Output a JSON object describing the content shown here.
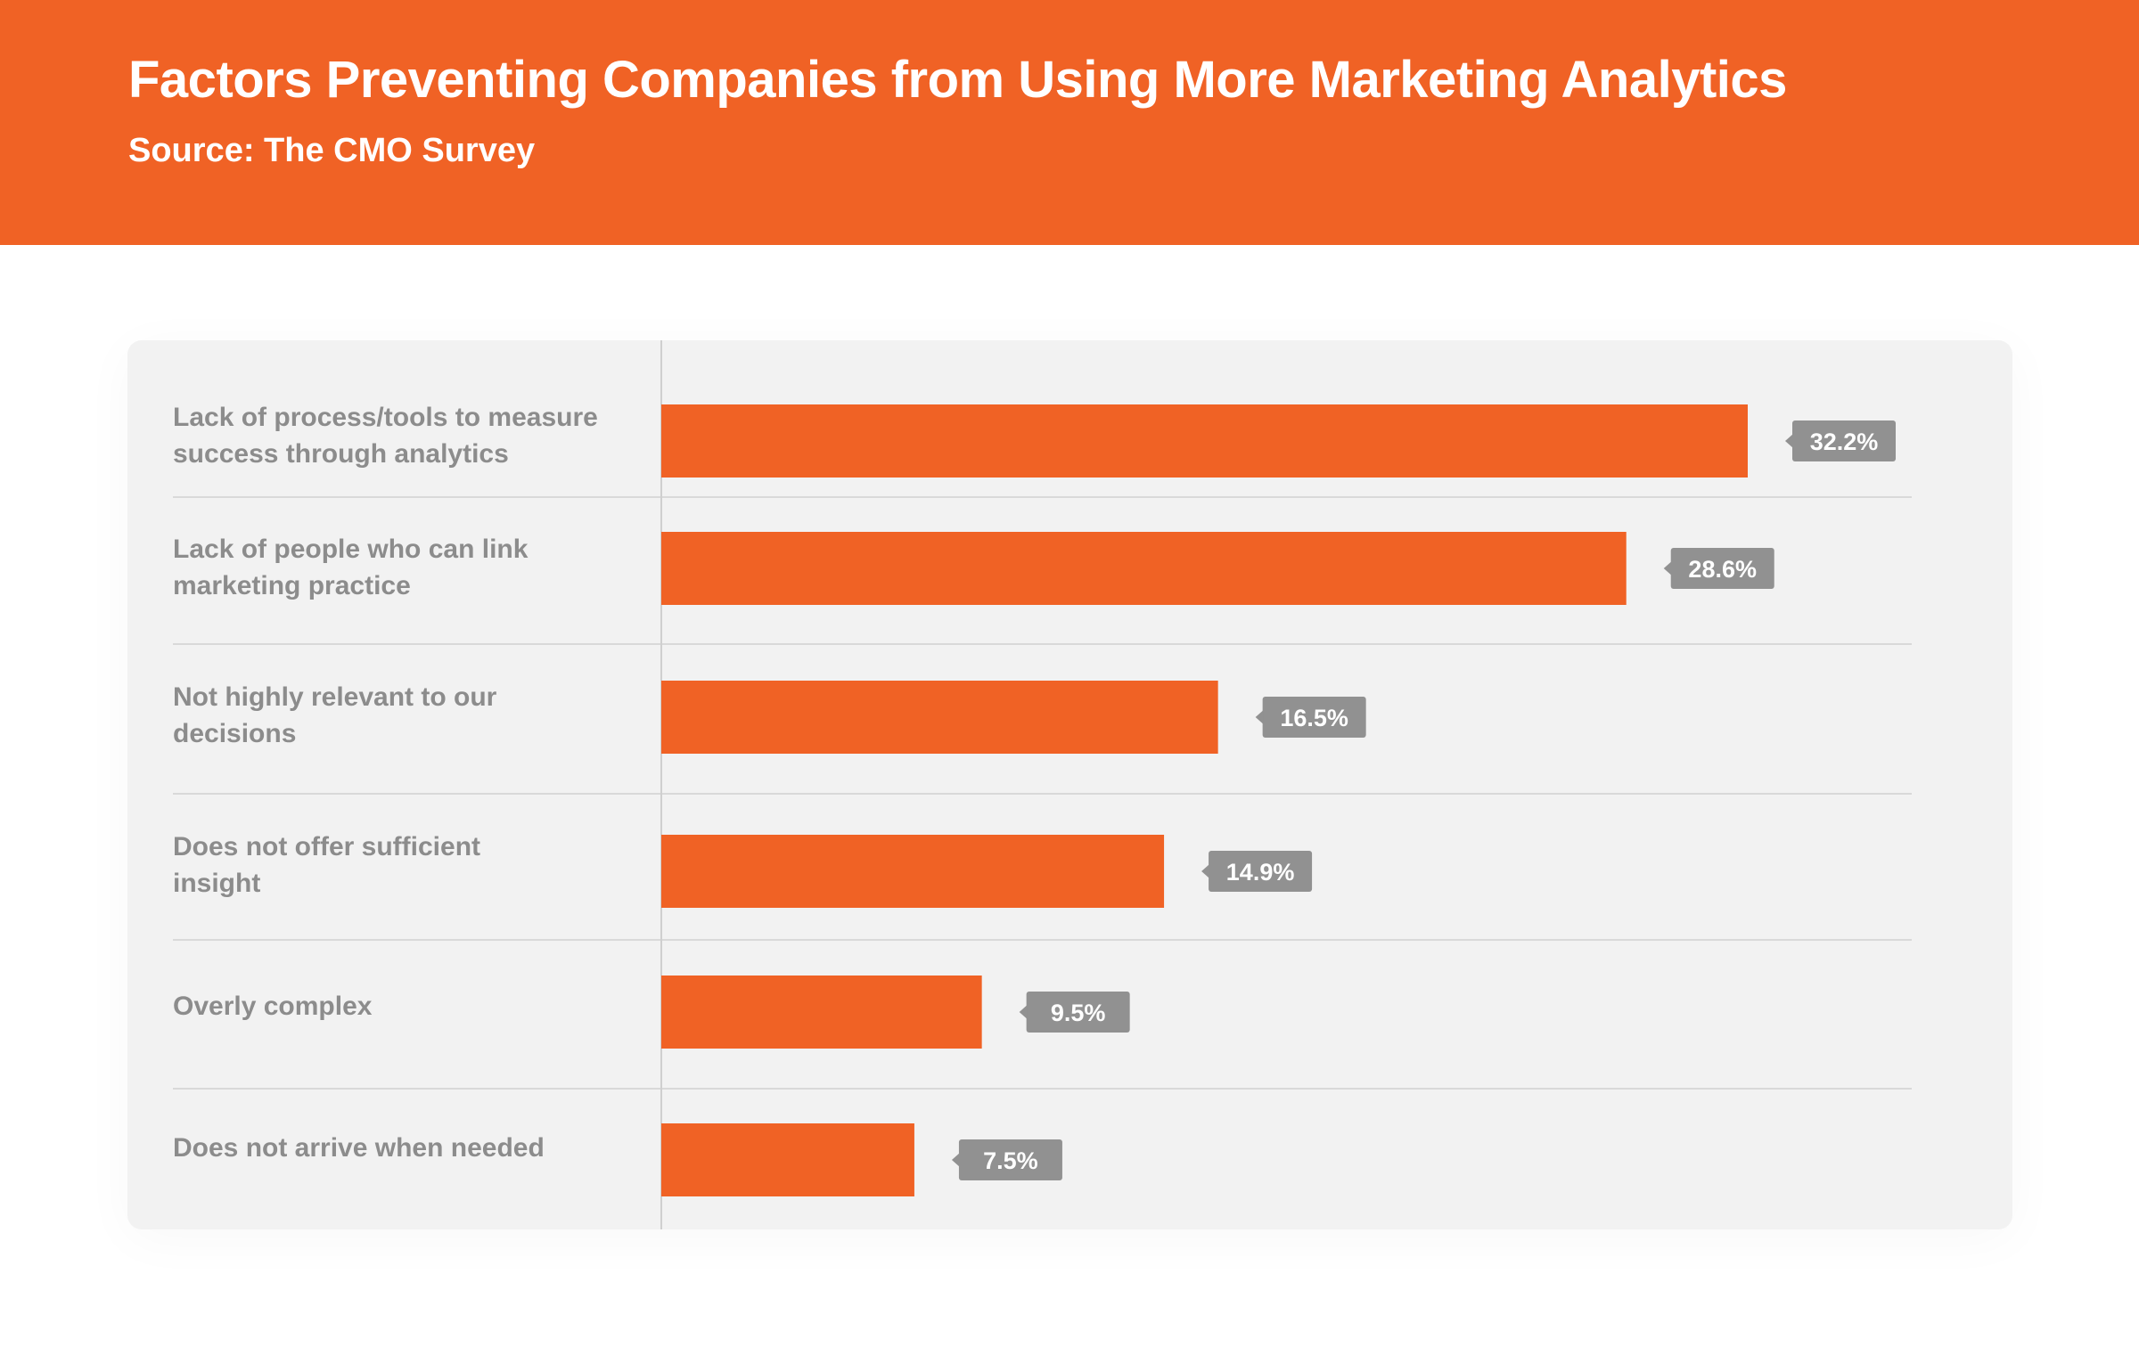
{
  "header": {
    "title": "Factors Preventing Companies from Using More Marketing Analytics",
    "subtitle": "Source: The CMO Survey"
  },
  "colors": {
    "brand": "#f06225",
    "bar": "#f06225",
    "label_bg": "#919191",
    "panel_bg": "#f2f2f2",
    "text_muted": "#8c8c8c"
  },
  "chart_data": {
    "type": "bar",
    "orientation": "horizontal",
    "title": "Factors Preventing Companies from Using More Marketing Analytics",
    "subtitle": "Source: The CMO Survey",
    "categories": [
      "Lack of process/tools to measure success through analytics",
      "Lack of people who can link marketing practice",
      "Not highly relevant to our decisions",
      "Does not offer sufficient insight",
      "Overly complex",
      "Does not arrive when needed"
    ],
    "values": [
      32.2,
      28.6,
      16.5,
      14.9,
      9.5,
      7.5
    ],
    "value_labels": [
      "32.2%",
      "28.6%",
      "16.5%",
      "14.9%",
      "9.5%",
      "7.5%"
    ],
    "unit": "%",
    "grid": false,
    "legend": "none"
  }
}
